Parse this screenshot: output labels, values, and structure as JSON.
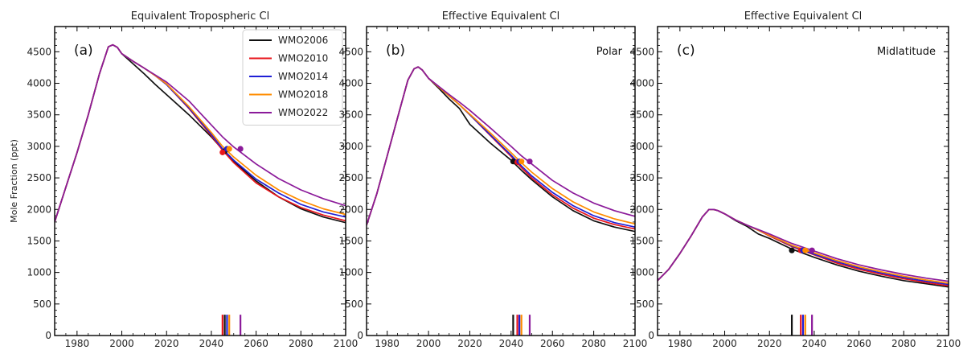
{
  "chart_data": [
    {
      "type": "line",
      "title": "Equivalent Tropospheric Cl",
      "panel_label": "(a)",
      "region": "",
      "ylabel": "Mole Fraction (ppt)",
      "xlim": [
        1970,
        2100
      ],
      "ylim": [
        0,
        4900
      ],
      "xticks": [
        1980,
        2000,
        2020,
        2040,
        2060,
        2080,
        2100
      ],
      "yticks": [
        0,
        500,
        1000,
        1500,
        2000,
        2500,
        3000,
        3500,
        4000,
        4500
      ],
      "legend": "top-right",
      "series": [
        {
          "name": "WMO2006",
          "color": "#111111",
          "x": [
            1970,
            1975,
            1980,
            1985,
            1990,
            1994,
            1996,
            1998,
            2000,
            2005,
            2010,
            2015,
            2020,
            2030,
            2040,
            2045,
            2050,
            2060,
            2070,
            2080,
            2090,
            2100
          ],
          "y": [
            1800,
            2350,
            2900,
            3500,
            4150,
            4580,
            4610,
            4570,
            4470,
            4310,
            4150,
            3980,
            3820,
            3500,
            3150,
            2950,
            2760,
            2450,
            2200,
            2010,
            1880,
            1790
          ],
          "marker": [
            2046,
            2925
          ],
          "bar_year": 2046
        },
        {
          "name": "WMO2010",
          "color": "#e8151b",
          "x": [
            1970,
            1975,
            1980,
            1985,
            1990,
            1994,
            1996,
            1998,
            2000,
            2005,
            2010,
            2015,
            2020,
            2030,
            2040,
            2045,
            2050,
            2060,
            2070,
            2080,
            2090,
            2100
          ],
          "y": [
            1800,
            2350,
            2900,
            3500,
            4150,
            4580,
            4610,
            4570,
            4470,
            4350,
            4240,
            4120,
            3980,
            3600,
            3170,
            2940,
            2740,
            2420,
            2200,
            2030,
            1910,
            1820
          ],
          "marker": [
            2045,
            2905
          ],
          "bar_year": 2045
        },
        {
          "name": "WMO2014",
          "color": "#1f1fd6",
          "x": [
            1970,
            1975,
            1980,
            1985,
            1990,
            1994,
            1996,
            1998,
            2000,
            2005,
            2010,
            2015,
            2020,
            2030,
            2040,
            2045,
            2050,
            2060,
            2070,
            2080,
            2090,
            2100
          ],
          "y": [
            1800,
            2350,
            2900,
            3500,
            4150,
            4580,
            4610,
            4570,
            4470,
            4350,
            4240,
            4120,
            3980,
            3610,
            3190,
            2960,
            2780,
            2480,
            2260,
            2080,
            1960,
            1880
          ],
          "marker": [
            2047,
            2960
          ],
          "bar_year": 2047
        },
        {
          "name": "WMO2018",
          "color": "#ff8c00",
          "x": [
            1970,
            1975,
            1980,
            1985,
            1990,
            1994,
            1996,
            1998,
            2000,
            2005,
            2010,
            2015,
            2020,
            2030,
            2040,
            2045,
            2050,
            2060,
            2070,
            2080,
            2090,
            2100
          ],
          "y": [
            1800,
            2350,
            2900,
            3500,
            4150,
            4580,
            4610,
            4570,
            4470,
            4350,
            4240,
            4120,
            3990,
            3630,
            3220,
            3000,
            2830,
            2540,
            2310,
            2140,
            2010,
            1920
          ],
          "marker": [
            2048,
            2960
          ],
          "bar_year": 2048
        },
        {
          "name": "WMO2022",
          "color": "#8b1a9a",
          "x": [
            1970,
            1975,
            1980,
            1985,
            1990,
            1994,
            1996,
            1998,
            2000,
            2005,
            2010,
            2015,
            2020,
            2030,
            2040,
            2045,
            2050,
            2060,
            2070,
            2080,
            2090,
            2100
          ],
          "y": [
            1800,
            2350,
            2900,
            3500,
            4150,
            4580,
            4610,
            4570,
            4470,
            4350,
            4240,
            4130,
            4020,
            3720,
            3340,
            3150,
            2990,
            2720,
            2490,
            2310,
            2170,
            2060
          ],
          "marker": [
            2053,
            2960
          ],
          "bar_year": 2053
        }
      ]
    },
    {
      "type": "line",
      "title": "Effective Equivalent Cl",
      "panel_label": "(b)",
      "region": "Polar",
      "ylabel": "",
      "xlim": [
        1970,
        2100
      ],
      "ylim": [
        0,
        4900
      ],
      "xticks": [
        1980,
        2000,
        2020,
        2040,
        2060,
        2080,
        2100
      ],
      "yticks": [
        0,
        500,
        1000,
        1500,
        2000,
        2500,
        3000,
        3500,
        4000,
        4500
      ],
      "legend": "",
      "series": [
        {
          "name": "WMO2006",
          "color": "#111111",
          "x": [
            1970,
            1975,
            1980,
            1985,
            1990,
            1993,
            1995,
            1997,
            2000,
            2005,
            2010,
            2015,
            2020,
            2030,
            2040,
            2045,
            2050,
            2060,
            2070,
            2080,
            2090,
            2100
          ],
          "y": [
            1750,
            2250,
            2850,
            3450,
            4050,
            4230,
            4260,
            4210,
            4080,
            3920,
            3750,
            3600,
            3350,
            3050,
            2780,
            2620,
            2470,
            2200,
            1980,
            1820,
            1720,
            1650
          ],
          "marker": [
            2041,
            2760
          ],
          "bar_year": 2041
        },
        {
          "name": "WMO2010",
          "color": "#e8151b",
          "x": [
            1970,
            1975,
            1980,
            1985,
            1990,
            1993,
            1995,
            1997,
            2000,
            2005,
            2010,
            2015,
            2020,
            2030,
            2040,
            2045,
            2050,
            2060,
            2070,
            2080,
            2090,
            2100
          ],
          "y": [
            1750,
            2250,
            2850,
            3450,
            4050,
            4230,
            4260,
            4210,
            4080,
            3940,
            3800,
            3660,
            3500,
            3170,
            2840,
            2660,
            2500,
            2230,
            2020,
            1860,
            1760,
            1690
          ],
          "marker": [
            2043,
            2750
          ],
          "bar_year": 2043
        },
        {
          "name": "WMO2014",
          "color": "#1f1fd6",
          "x": [
            1970,
            1975,
            1980,
            1985,
            1990,
            1993,
            1995,
            1997,
            2000,
            2005,
            2010,
            2015,
            2020,
            2030,
            2040,
            2045,
            2050,
            2060,
            2070,
            2080,
            2090,
            2100
          ],
          "y": [
            1750,
            2250,
            2850,
            3450,
            4050,
            4230,
            4260,
            4210,
            4080,
            3940,
            3800,
            3660,
            3500,
            3180,
            2860,
            2690,
            2530,
            2270,
            2060,
            1900,
            1790,
            1720
          ],
          "marker": [
            2044,
            2760
          ],
          "bar_year": 2044
        },
        {
          "name": "WMO2018",
          "color": "#ff8c00",
          "x": [
            1970,
            1975,
            1980,
            1985,
            1990,
            1993,
            1995,
            1997,
            2000,
            2005,
            2010,
            2015,
            2020,
            2030,
            2040,
            2045,
            2050,
            2060,
            2070,
            2080,
            2090,
            2100
          ],
          "y": [
            1750,
            2250,
            2850,
            3450,
            4050,
            4230,
            4260,
            4210,
            4080,
            3940,
            3800,
            3660,
            3510,
            3210,
            2900,
            2740,
            2590,
            2330,
            2120,
            1960,
            1850,
            1770
          ],
          "marker": [
            2045,
            2760
          ],
          "bar_year": 2045
        },
        {
          "name": "WMO2022",
          "color": "#8b1a9a",
          "x": [
            1970,
            1975,
            1980,
            1985,
            1990,
            1993,
            1995,
            1997,
            2000,
            2005,
            2010,
            2015,
            2020,
            2030,
            2040,
            2045,
            2050,
            2060,
            2070,
            2080,
            2090,
            2100
          ],
          "y": [
            1750,
            2250,
            2850,
            3450,
            4050,
            4230,
            4260,
            4210,
            4080,
            3950,
            3820,
            3700,
            3570,
            3290,
            3000,
            2850,
            2720,
            2460,
            2260,
            2100,
            1980,
            1890
          ],
          "marker": [
            2049,
            2760
          ],
          "bar_year": 2049
        }
      ]
    },
    {
      "type": "line",
      "title": "Effective Equivalent Cl",
      "panel_label": "(c)",
      "region": "Midlatitude",
      "ylabel": "",
      "xlim": [
        1970,
        2100
      ],
      "ylim": [
        0,
        4900
      ],
      "xticks": [
        1980,
        2000,
        2020,
        2040,
        2060,
        2080,
        2100
      ],
      "yticks": [
        0,
        500,
        1000,
        1500,
        2000,
        2500,
        3000,
        3500,
        4000,
        4500
      ],
      "legend": "",
      "series": [
        {
          "name": "WMO2006",
          "color": "#111111",
          "x": [
            1970,
            1975,
            1980,
            1985,
            1990,
            1993,
            1995,
            1997,
            2000,
            2005,
            2010,
            2015,
            2020,
            2030,
            2040,
            2050,
            2060,
            2070,
            2080,
            2090,
            2100
          ],
          "y": [
            870,
            1050,
            1300,
            1580,
            1880,
            2000,
            2000,
            1980,
            1930,
            1820,
            1730,
            1610,
            1540,
            1370,
            1240,
            1120,
            1020,
            940,
            870,
            820,
            770
          ],
          "marker": [
            2030,
            1350
          ],
          "bar_year": 2030
        },
        {
          "name": "WMO2010",
          "color": "#e8151b",
          "x": [
            1970,
            1975,
            1980,
            1985,
            1990,
            1993,
            1995,
            1997,
            2000,
            2005,
            2010,
            2015,
            2020,
            2030,
            2040,
            2050,
            2060,
            2070,
            2080,
            2090,
            2100
          ],
          "y": [
            870,
            1050,
            1300,
            1580,
            1880,
            2000,
            2000,
            1980,
            1930,
            1830,
            1750,
            1670,
            1580,
            1410,
            1280,
            1150,
            1050,
            970,
            900,
            840,
            790
          ],
          "marker": [
            2034,
            1350
          ],
          "bar_year": 2034
        },
        {
          "name": "WMO2014",
          "color": "#1f1fd6",
          "x": [
            1970,
            1975,
            1980,
            1985,
            1990,
            1993,
            1995,
            1997,
            2000,
            2005,
            2010,
            2015,
            2020,
            2030,
            2040,
            2050,
            2060,
            2070,
            2080,
            2090,
            2100
          ],
          "y": [
            870,
            1050,
            1300,
            1580,
            1880,
            2000,
            2000,
            1980,
            1930,
            1830,
            1750,
            1670,
            1590,
            1420,
            1290,
            1170,
            1070,
            990,
            920,
            860,
            810
          ],
          "marker": [
            2035,
            1350
          ],
          "bar_year": 2035
        },
        {
          "name": "WMO2018",
          "color": "#ff8c00",
          "x": [
            1970,
            1975,
            1980,
            1985,
            1990,
            1993,
            1995,
            1997,
            2000,
            2005,
            2010,
            2015,
            2020,
            2030,
            2040,
            2050,
            2060,
            2070,
            2080,
            2090,
            2100
          ],
          "y": [
            870,
            1050,
            1300,
            1580,
            1880,
            2000,
            2000,
            1980,
            1930,
            1830,
            1750,
            1670,
            1590,
            1430,
            1310,
            1190,
            1090,
            1010,
            940,
            880,
            830
          ],
          "marker": [
            2036,
            1350
          ],
          "bar_year": 2036
        },
        {
          "name": "WMO2022",
          "color": "#8b1a9a",
          "x": [
            1970,
            1975,
            1980,
            1985,
            1990,
            1993,
            1995,
            1997,
            2000,
            2005,
            2010,
            2015,
            2020,
            2030,
            2040,
            2050,
            2060,
            2070,
            2080,
            2090,
            2100
          ],
          "y": [
            870,
            1050,
            1300,
            1580,
            1880,
            2000,
            2000,
            1980,
            1930,
            1830,
            1750,
            1680,
            1610,
            1460,
            1340,
            1220,
            1120,
            1040,
            970,
            910,
            860
          ],
          "marker": [
            2039,
            1350
          ],
          "bar_year": 2039
        }
      ]
    }
  ]
}
